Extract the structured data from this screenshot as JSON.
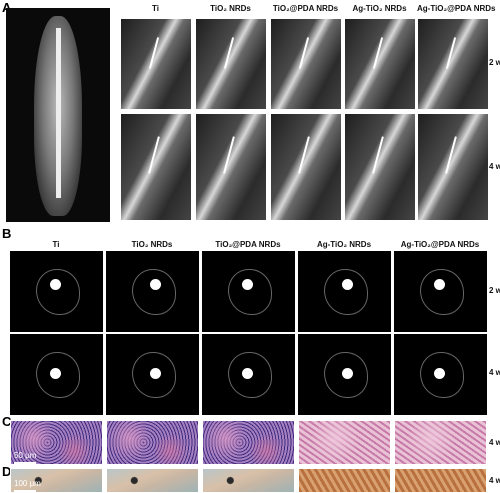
{
  "panel_a": {
    "label": "A",
    "columns": [
      "Ti",
      "TiO₂ NRDs",
      "TiO₂@PDA NRDs",
      "Ag-TiO₂ NRDs",
      "Ag-TiO₂@PDA NRDs"
    ],
    "rows": [
      "2 w",
      "4 w"
    ]
  },
  "panel_b": {
    "label": "B",
    "columns": [
      "Ti",
      "TiO₂ NRDs",
      "TiO₂@PDA NRDs",
      "Ag-TiO₂ NRDs",
      "Ag-TiO₂@PDA NRDs"
    ],
    "rows": [
      "2 w",
      "4 w"
    ]
  },
  "panel_c": {
    "label": "C",
    "row": "4 w",
    "scale_bar": "50 μm"
  },
  "panel_d": {
    "label": "D",
    "row": "4 w",
    "scale_bar": "100 μm"
  }
}
